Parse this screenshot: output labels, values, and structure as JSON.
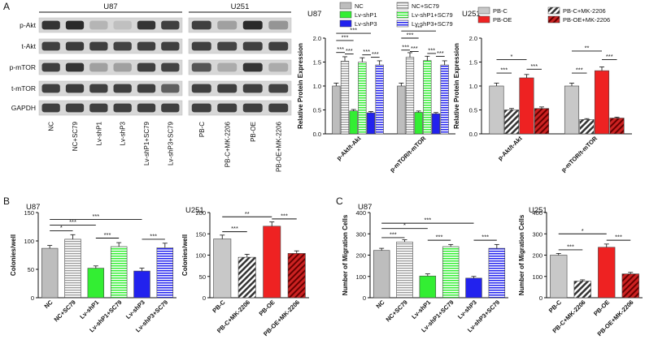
{
  "panel_labels": {
    "A": "A",
    "B": "B",
    "C": "C"
  },
  "blots": {
    "u87": {
      "title": "U87",
      "lanes": [
        "NC",
        "NC+SC79",
        "Lv-shP1",
        "Lv-shP3",
        "Lv-shP1+SC79",
        "Lv-shP3+SC79"
      ],
      "rows": [
        {
          "label": "p-Akt",
          "intensity": [
            0.85,
            0.9,
            0.25,
            0.2,
            0.85,
            0.8
          ]
        },
        {
          "label": "t-Akt",
          "intensity": [
            0.8,
            0.82,
            0.8,
            0.78,
            0.8,
            0.8
          ]
        },
        {
          "label": "p-mTOR",
          "intensity": [
            0.8,
            0.85,
            0.35,
            0.35,
            0.8,
            0.78
          ]
        },
        {
          "label": "t-mTOR",
          "intensity": [
            0.8,
            0.82,
            0.8,
            0.8,
            0.8,
            0.65
          ]
        },
        {
          "label": "GAPDH",
          "intensity": [
            0.8,
            0.8,
            0.8,
            0.8,
            0.8,
            0.8
          ]
        }
      ]
    },
    "u251": {
      "title": "U251",
      "lanes": [
        "PB-C",
        "PB-C+MK-2206",
        "PB-OE",
        "PB-OE+MK-2206"
      ],
      "rows": [
        {
          "intensity": [
            0.8,
            0.35,
            0.9,
            0.4
          ]
        },
        {
          "intensity": [
            0.8,
            0.78,
            0.8,
            0.8
          ]
        },
        {
          "intensity": [
            0.7,
            0.3,
            0.85,
            0.3
          ]
        },
        {
          "intensity": [
            0.8,
            0.8,
            0.8,
            0.78
          ]
        },
        {
          "intensity": [
            0.8,
            0.8,
            0.8,
            0.8
          ]
        }
      ]
    }
  },
  "colors": {
    "NC": "#bdbdbd",
    "NC+SC79": "#bdbdbd",
    "Lv-shP1": "#33ee33",
    "Lv-shP1+SC79": "#33ee33",
    "Lv-shP3": "#2222ee",
    "Lv-shP3+SC79": "#2222ee",
    "PB-C": "#c8c8c8",
    "PB-C+MK-2206": "#666666",
    "PB-OE": "#ee2222",
    "PB-OE+MK-2206": "#aa1111"
  },
  "chart_data": [
    {
      "id": "u87-protein",
      "type": "bar",
      "title": "U87",
      "ylabel": "Relative Protein Expression",
      "ylim": [
        0,
        2.0
      ],
      "yticks": [
        0.0,
        0.5,
        1.0,
        1.5,
        2.0
      ],
      "ytick_labels": [
        "0.0",
        "0.5",
        "1.0",
        "1.5",
        "2.0"
      ],
      "categories": [
        "p-Akt/t-Akt",
        "p-mTOR/t-mTOR"
      ],
      "series": [
        {
          "name": "NC",
          "values": [
            1.0,
            1.0
          ],
          "pattern": "solid"
        },
        {
          "name": "NC+SC79",
          "values": [
            1.52,
            1.6
          ],
          "pattern": "hstripe"
        },
        {
          "name": "Lv-shP1",
          "values": [
            0.48,
            0.45
          ],
          "pattern": "solid"
        },
        {
          "name": "Lv-shP1+SC79",
          "values": [
            1.5,
            1.53
          ],
          "pattern": "hstripe"
        },
        {
          "name": "Lv-shP3",
          "values": [
            0.44,
            0.42
          ],
          "pattern": "solid"
        },
        {
          "name": "Lv-shP3+SC79",
          "values": [
            1.44,
            1.44
          ],
          "pattern": "hstripe"
        }
      ],
      "legend": {
        "placement": "top",
        "columns": 2
      },
      "annotations": [
        "***",
        "***",
        "***",
        "***",
        "***",
        "***",
        "***",
        "***",
        "***",
        "***",
        "***",
        "***"
      ]
    },
    {
      "id": "u251-protein",
      "type": "bar",
      "title": "U251",
      "ylabel": "Relative Protein Expression",
      "ylim": [
        0,
        2.0
      ],
      "yticks": [
        0.0,
        0.5,
        1.0,
        1.5,
        2.0
      ],
      "ytick_labels": [
        "0.0",
        "0.5",
        "1.0",
        "1.5",
        "2.0"
      ],
      "categories": [
        "p-Akt/t-Akt",
        "p-mTOR/t-mTOR"
      ],
      "series": [
        {
          "name": "PB-C",
          "values": [
            1.0,
            1.0
          ],
          "pattern": "solid"
        },
        {
          "name": "PB-C+MK-2206",
          "values": [
            0.5,
            0.3
          ],
          "pattern": "diag"
        },
        {
          "name": "PB-OE",
          "values": [
            1.17,
            1.32
          ],
          "pattern": "solid"
        },
        {
          "name": "PB-OE+MK-2206",
          "values": [
            0.53,
            0.33
          ],
          "pattern": "diag"
        }
      ],
      "legend": {
        "placement": "top",
        "columns": 2
      },
      "annotations": [
        "*",
        "***",
        "***",
        "**",
        "***",
        "***"
      ]
    },
    {
      "id": "u87-colonies",
      "type": "bar",
      "title": "U87",
      "ylabel": "Colonies/well",
      "ylim": [
        0,
        150
      ],
      "yticks": [
        0,
        50,
        100,
        150
      ],
      "ytick_labels": [
        "0",
        "50",
        "100",
        "150"
      ],
      "categories": [
        "NC",
        "NC+SC79",
        "Lv-shP1",
        "Lv-shP1+SC79",
        "Lv-shP3",
        "Lv-shP3+SC79"
      ],
      "values": [
        87,
        103,
        52,
        90,
        47,
        88
      ],
      "errors": [
        5,
        8,
        4,
        7,
        5,
        8
      ],
      "annotations": [
        "*",
        "***",
        "***",
        "***",
        "***"
      ]
    },
    {
      "id": "u251-colonies",
      "type": "bar",
      "title": "U251",
      "ylabel": "Colonies/well",
      "ylim": [
        0,
        200
      ],
      "yticks": [
        0,
        50,
        100,
        150,
        200
      ],
      "ytick_labels": [
        "0",
        "50",
        "100",
        "150",
        "200"
      ],
      "categories": [
        "PB-C",
        "PB-C+MK-2206",
        "PB-OE",
        "PB-OE+MK-2206"
      ],
      "values": [
        138,
        95,
        168,
        104
      ],
      "errors": [
        9,
        7,
        10,
        6
      ],
      "annotations": [
        "**",
        "***",
        "***"
      ]
    },
    {
      "id": "u87-migration",
      "type": "bar",
      "title": "U87",
      "ylabel": "Number of Migration Cells",
      "ylim": [
        0,
        400
      ],
      "yticks": [
        0,
        100,
        200,
        300,
        400
      ],
      "ytick_labels": [
        "0",
        "100",
        "200",
        "300",
        "400"
      ],
      "categories": [
        "NC",
        "NC+SC79",
        "Lv-shP1",
        "Lv-shP1+SC79",
        "Lv-shP3",
        "Lv-shP3+SC79"
      ],
      "values": [
        222,
        262,
        102,
        240,
        92,
        232
      ],
      "errors": [
        10,
        10,
        10,
        10,
        8,
        18
      ],
      "annotations": [
        "***",
        "*",
        "***",
        "***",
        "***"
      ]
    },
    {
      "id": "u251-migration",
      "type": "bar",
      "title": "U251",
      "ylabel": "Number of Migration Cells",
      "ylim": [
        0,
        400
      ],
      "yticks": [
        0,
        100,
        200,
        300,
        400
      ],
      "ytick_labels": [
        "0",
        "100",
        "200",
        "300",
        "400"
      ],
      "categories": [
        "PB-C",
        "PB-C+MK-2206",
        "PB-OE",
        "PB-OE+MK-2206"
      ],
      "values": [
        200,
        78,
        237,
        112
      ],
      "errors": [
        8,
        6,
        15,
        7
      ],
      "annotations": [
        "*",
        "***",
        "***"
      ]
    }
  ]
}
